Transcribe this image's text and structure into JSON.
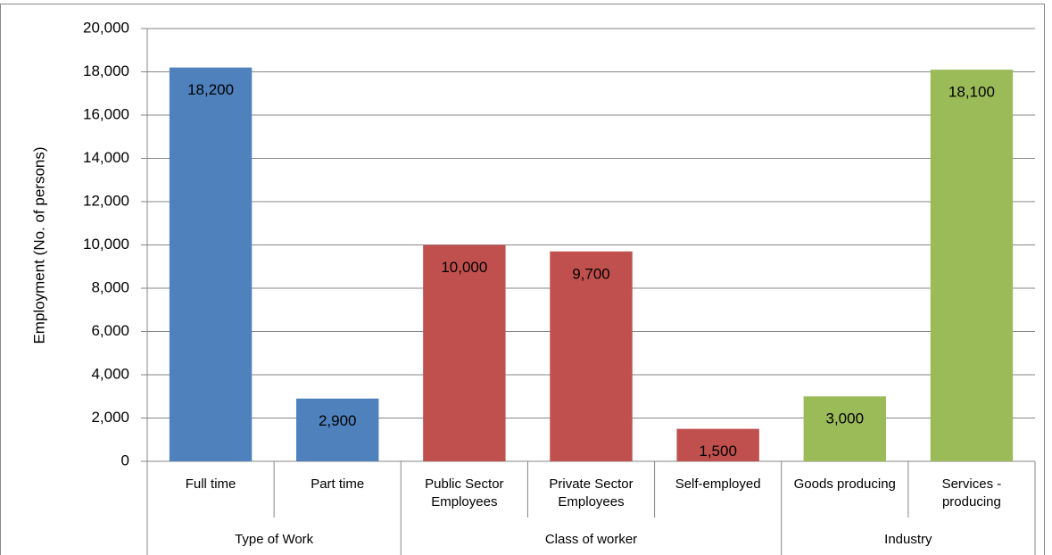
{
  "chart_data": {
    "type": "bar",
    "y_label": "Employment  (No. of persons)",
    "ylim": [
      0,
      20000
    ],
    "yticks": [
      {
        "value": 0,
        "label": "0"
      },
      {
        "value": 2000,
        "label": "2,000"
      },
      {
        "value": 4000,
        "label": "4,000"
      },
      {
        "value": 6000,
        "label": "6,000"
      },
      {
        "value": 8000,
        "label": "8,000"
      },
      {
        "value": 10000,
        "label": "10,000"
      },
      {
        "value": 12000,
        "label": "12,000"
      },
      {
        "value": 14000,
        "label": "14,000"
      },
      {
        "value": 16000,
        "label": "16,000"
      },
      {
        "value": 18000,
        "label": "18,000"
      },
      {
        "value": 20000,
        "label": "20,000"
      }
    ],
    "grid": true,
    "groups": [
      {
        "name": "Type of Work",
        "color": "#4f81bd",
        "categories": [
          "Full time",
          "Part time"
        ],
        "values": [
          18200,
          2900
        ],
        "value_labels": [
          "18,200",
          "2,900"
        ]
      },
      {
        "name": "Class of worker",
        "color": "#c0504d",
        "categories": [
          "Public Sector Employees",
          "Private Sector Employees",
          "Self-employed"
        ],
        "values": [
          10000,
          9700,
          1500
        ],
        "value_labels": [
          "10,000",
          "9,700",
          "1,500"
        ]
      },
      {
        "name": "Industry",
        "color": "#9bbb59",
        "categories": [
          "Goods producing",
          "Services - producing"
        ],
        "values": [
          3000,
          18100
        ],
        "value_labels": [
          "3,000",
          "18,100"
        ]
      }
    ]
  }
}
